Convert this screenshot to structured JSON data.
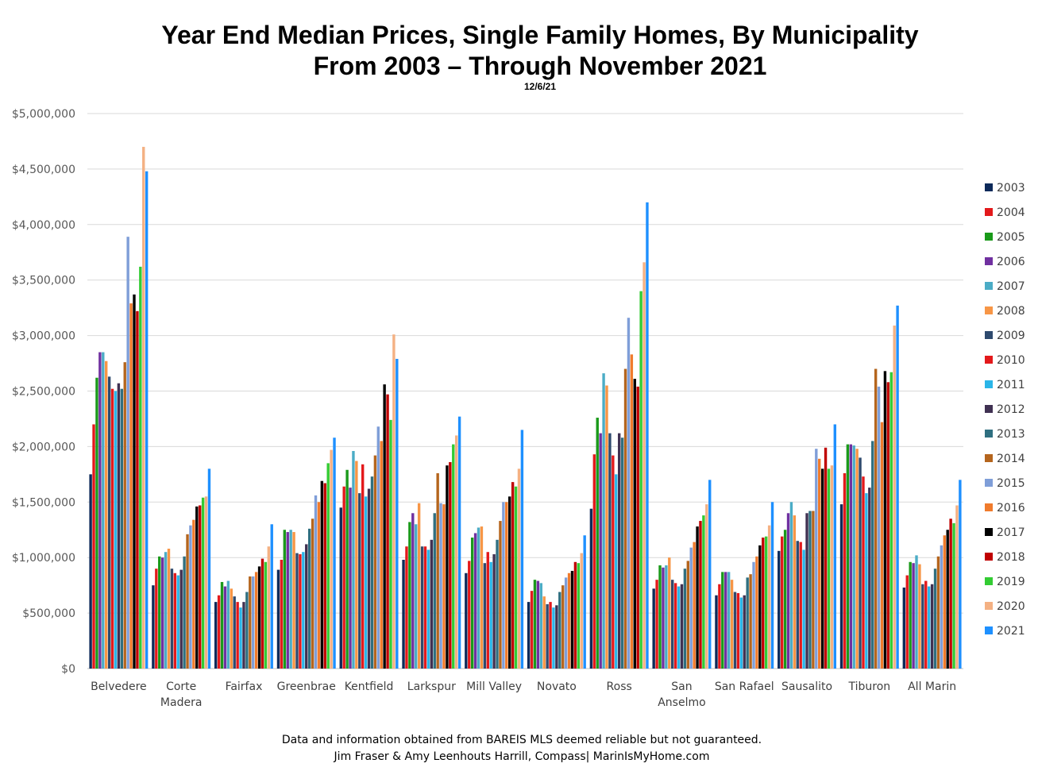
{
  "chart_data": {
    "type": "bar",
    "title_line1": "Year End Median Prices, Single Family Homes, By Municipality",
    "title_line2": "From 2003 – Through November 2021",
    "subtitle": "12/6/21",
    "ylim": [
      0,
      5000000
    ],
    "y_ticks": [
      "$0",
      "$500,000",
      "$1,000,000",
      "$1,500,000",
      "$2,000,000",
      "$2,500,000",
      "$3,000,000",
      "$3,500,000",
      "$4,000,000",
      "$4,500,000",
      "$5,000,000"
    ],
    "grid": true,
    "legend_position": "right",
    "categories": [
      [
        "Belvedere"
      ],
      [
        "Corte",
        "Madera"
      ],
      [
        "Fairfax"
      ],
      [
        "Greenbrae"
      ],
      [
        "Kentfield"
      ],
      [
        "Larkspur"
      ],
      [
        "Mill Valley"
      ],
      [
        "Novato"
      ],
      [
        "Ross"
      ],
      [
        "San",
        "Anselmo"
      ],
      [
        "San Rafael"
      ],
      [
        "Sausalito"
      ],
      [
        "Tiburon"
      ],
      [
        "All Marin"
      ]
    ],
    "series": [
      {
        "name": "2003",
        "color": "#0d2a5a",
        "values": [
          1750000,
          750000,
          600000,
          890000,
          1450000,
          980000,
          860000,
          600000,
          1440000,
          720000,
          660000,
          1060000,
          1480000,
          730000
        ]
      },
      {
        "name": "2004",
        "color": "#e3191b",
        "values": [
          2200000,
          900000,
          660000,
          980000,
          1640000,
          1100000,
          970000,
          700000,
          1930000,
          800000,
          760000,
          1190000,
          1760000,
          840000
        ]
      },
      {
        "name": "2005",
        "color": "#1a9a1a",
        "values": [
          2620000,
          1010000,
          780000,
          1250000,
          1790000,
          1320000,
          1180000,
          800000,
          2260000,
          930000,
          870000,
          1250000,
          2020000,
          960000
        ]
      },
      {
        "name": "2006",
        "color": "#7030a0",
        "values": [
          2850000,
          1000000,
          740000,
          1230000,
          1630000,
          1400000,
          1220000,
          790000,
          2120000,
          910000,
          870000,
          1400000,
          2020000,
          950000
        ]
      },
      {
        "name": "2007",
        "color": "#4bacc6",
        "values": [
          2850000,
          1050000,
          790000,
          1250000,
          1960000,
          1300000,
          1270000,
          770000,
          2660000,
          930000,
          870000,
          1500000,
          2010000,
          1020000
        ]
      },
      {
        "name": "2008",
        "color": "#f79646",
        "values": [
          2770000,
          1080000,
          720000,
          1230000,
          1870000,
          1490000,
          1280000,
          650000,
          2550000,
          1000000,
          800000,
          1380000,
          1980000,
          940000
        ]
      },
      {
        "name": "2009",
        "color": "#2e4a6e",
        "values": [
          2630000,
          900000,
          650000,
          1040000,
          1580000,
          1100000,
          950000,
          580000,
          2120000,
          800000,
          690000,
          1150000,
          1900000,
          760000
        ]
      },
      {
        "name": "2010",
        "color": "#e3191b",
        "values": [
          2520000,
          860000,
          600000,
          1030000,
          1840000,
          1100000,
          1050000,
          600000,
          1920000,
          770000,
          680000,
          1140000,
          1730000,
          790000
        ]
      },
      {
        "name": "2011",
        "color": "#2ab5e8",
        "values": [
          2500000,
          840000,
          550000,
          1050000,
          1550000,
          1070000,
          960000,
          550000,
          1750000,
          740000,
          640000,
          1070000,
          1580000,
          740000
        ]
      },
      {
        "name": "2012",
        "color": "#403152",
        "values": [
          2570000,
          890000,
          600000,
          1120000,
          1620000,
          1160000,
          1030000,
          570000,
          2120000,
          760000,
          660000,
          1400000,
          1630000,
          760000
        ]
      },
      {
        "name": "2013",
        "color": "#2f6f80",
        "values": [
          2520000,
          1010000,
          690000,
          1260000,
          1730000,
          1400000,
          1160000,
          690000,
          2080000,
          900000,
          820000,
          1420000,
          2050000,
          900000
        ]
      },
      {
        "name": "2014",
        "color": "#b5651d",
        "values": [
          2760000,
          1210000,
          830000,
          1350000,
          1920000,
          1760000,
          1330000,
          750000,
          2700000,
          970000,
          850000,
          1420000,
          2700000,
          1010000
        ]
      },
      {
        "name": "2015",
        "color": "#7f9ed8",
        "values": [
          3890000,
          1290000,
          830000,
          1560000,
          2180000,
          1490000,
          1500000,
          820000,
          3160000,
          1090000,
          960000,
          1980000,
          2540000,
          1110000
        ]
      },
      {
        "name": "2016",
        "color": "#f07b2c",
        "values": [
          3290000,
          1340000,
          870000,
          1500000,
          2050000,
          1480000,
          1500000,
          860000,
          2830000,
          1140000,
          1010000,
          1890000,
          2220000,
          1200000
        ]
      },
      {
        "name": "2017",
        "color": "#000000",
        "values": [
          3370000,
          1460000,
          920000,
          1690000,
          2560000,
          1830000,
          1550000,
          880000,
          2610000,
          1280000,
          1110000,
          1800000,
          2680000,
          1250000
        ]
      },
      {
        "name": "2018",
        "color": "#c00000",
        "values": [
          3220000,
          1470000,
          990000,
          1670000,
          2470000,
          1860000,
          1680000,
          960000,
          2540000,
          1330000,
          1180000,
          1990000,
          2580000,
          1350000
        ]
      },
      {
        "name": "2019",
        "color": "#33cc33",
        "values": [
          3620000,
          1540000,
          960000,
          1850000,
          2240000,
          2020000,
          1640000,
          950000,
          3400000,
          1380000,
          1190000,
          1800000,
          2670000,
          1310000
        ]
      },
      {
        "name": "2020",
        "color": "#f4b183",
        "values": [
          4700000,
          1550000,
          1100000,
          1970000,
          3010000,
          2100000,
          1800000,
          1040000,
          3660000,
          1480000,
          1290000,
          1830000,
          3090000,
          1470000
        ]
      },
      {
        "name": "2021",
        "color": "#1e90ff",
        "values": [
          4480000,
          1800000,
          1300000,
          2080000,
          2790000,
          2270000,
          2150000,
          1200000,
          4200000,
          1700000,
          1500000,
          2200000,
          3270000,
          1700000
        ]
      }
    ]
  },
  "footer": {
    "line1": "Data and information obtained from BAREIS MLS deemed reliable but not guaranteed.",
    "line2": "Jim Fraser & Amy Leenhouts Harrill, Compass| MarinIsMyHome.com"
  }
}
